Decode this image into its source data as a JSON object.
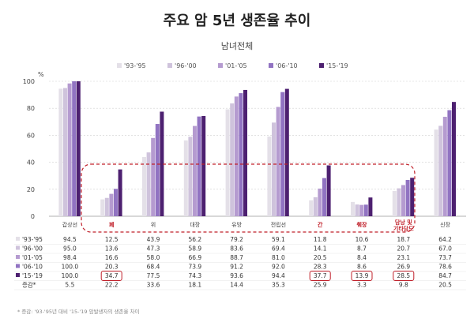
{
  "header": {
    "title": "주요 암 5년 생존율 추이",
    "subtitle": "남녀전체"
  },
  "footnote": "* 증감: '93-'95년 대비 '15-'19 암발생자의 생존율 차이",
  "colors": {
    "series": [
      "#e4e0e8",
      "#cfc3dc",
      "#b59bd0",
      "#9173c2",
      "#4d2070"
    ],
    "highlight": "#c0202a"
  },
  "chart_data": {
    "type": "bar",
    "y_unit": "%",
    "ylim": [
      0,
      100
    ],
    "yticks": [
      0,
      20,
      40,
      60,
      80,
      100
    ],
    "legend_position": "top",
    "categories": [
      "갑상선",
      "폐",
      "위",
      "대장",
      "유방",
      "전립선",
      "간",
      "췌장",
      "담낭 및 기타담도",
      "신장"
    ],
    "highlighted_categories": [
      "폐",
      "간",
      "췌장",
      "담낭 및 기타담도"
    ],
    "series": [
      {
        "name": "'93-'95",
        "values": [
          94.5,
          12.5,
          43.9,
          56.2,
          79.2,
          59.1,
          11.8,
          10.6,
          18.7,
          64.2
        ]
      },
      {
        "name": "'96-'00",
        "values": [
          95.0,
          13.6,
          47.3,
          58.9,
          83.6,
          69.4,
          14.1,
          8.7,
          20.7,
          67.0
        ]
      },
      {
        "name": "'01-'05",
        "values": [
          98.4,
          16.6,
          58.0,
          66.9,
          88.7,
          81.0,
          20.5,
          8.4,
          23.1,
          73.7
        ]
      },
      {
        "name": "'06-'10",
        "values": [
          100.0,
          20.3,
          68.4,
          73.9,
          91.2,
          92.0,
          28.3,
          8.6,
          26.9,
          78.6
        ]
      },
      {
        "name": "'15-'19",
        "values": [
          100.0,
          34.7,
          77.5,
          74.3,
          93.6,
          94.4,
          37.7,
          13.9,
          28.5,
          84.7
        ]
      }
    ],
    "change": {
      "name": "증감*",
      "values": [
        5.5,
        22.2,
        33.6,
        18.1,
        14.4,
        35.3,
        25.9,
        3.3,
        9.8,
        20.5
      ]
    },
    "boxed_values": {
      "series_index": 4,
      "category_indices": [
        1,
        6,
        7,
        8
      ]
    }
  }
}
